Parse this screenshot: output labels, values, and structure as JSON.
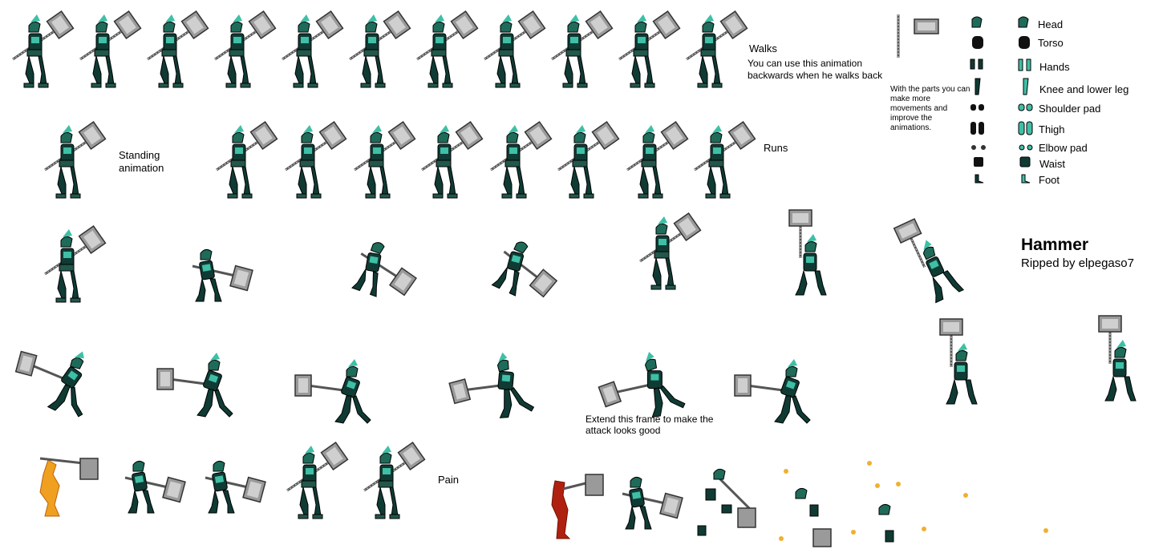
{
  "labels": {
    "walks": "Walks",
    "walks_note_1": "You can use this animation",
    "walks_note_2": "backwards when he walks back",
    "standing_1": "Standing",
    "standing_2": "animation",
    "runs": "Runs",
    "parts_note": "With the parts you can make more movements and improve the animations.",
    "title": "Hammer",
    "credit": "Ripped by elpegaso7",
    "extend_1": "Extend this frame to make the",
    "extend_2": "attack looks good",
    "pain": "Pain"
  },
  "parts": [
    {
      "label": "Head"
    },
    {
      "label": "Torso"
    },
    {
      "label": "Hands"
    },
    {
      "label": "Knee and lower leg"
    },
    {
      "label": "Shoulder pad"
    },
    {
      "label": "Thigh"
    },
    {
      "label": "Elbow pad"
    },
    {
      "label": "Waist"
    },
    {
      "label": "Foot"
    }
  ],
  "colors": {
    "armor": "#0f3b34",
    "armor_light": "#3fbfa6",
    "metal": "#9a9a9a",
    "metal_dark": "#4a4a4a",
    "pain_orange": "#f0a020",
    "pain_red": "#b02010",
    "spark": "#f0b030"
  }
}
